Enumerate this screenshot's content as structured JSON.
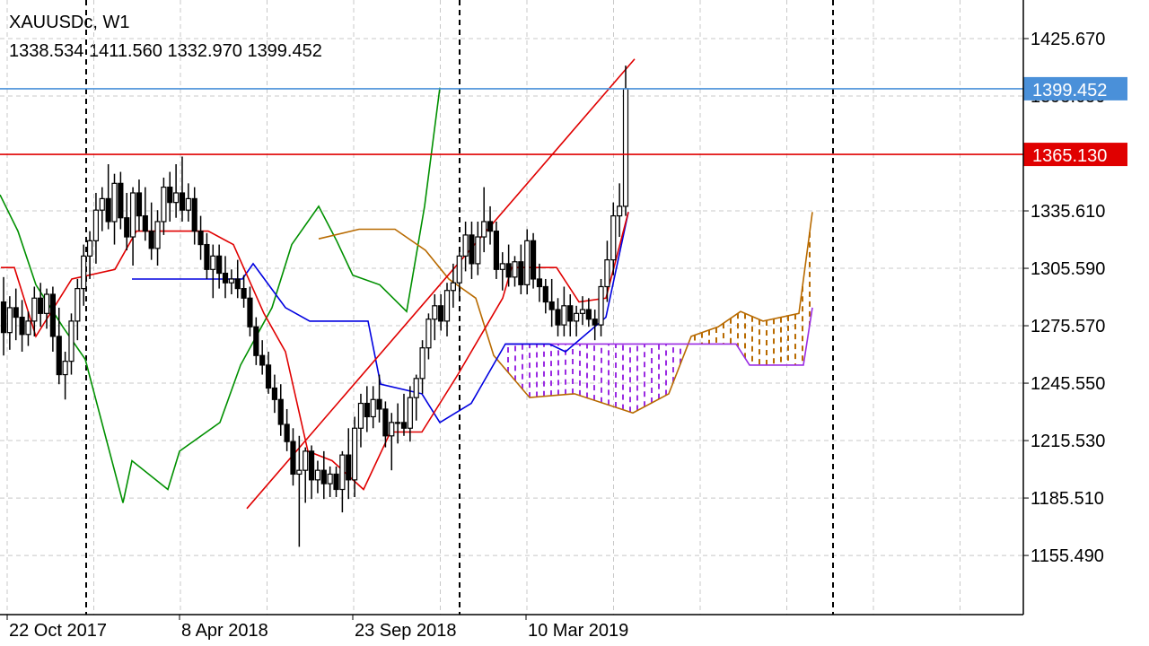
{
  "header": {
    "symbol": "XAUUSDc, W1",
    "ohlc": "1338.534 1411.560 1332.970 1399.452"
  },
  "colors": {
    "background": "#ffffff",
    "grid": "#c8c8c8",
    "candle": "#000000",
    "tenkan": "#e00000",
    "kijun": "#0000e0",
    "chikou": "#009000",
    "span_a": "#b86a00",
    "span_b": "#9a2be2",
    "current_price_line": "#4a90d9",
    "level_line": "#e00000",
    "trendline": "#e00000"
  },
  "chart_data": {
    "type": "candlestick",
    "title": "XAUUSDc, W1",
    "ylim": [
      1135,
      1447
    ],
    "y_ticks": [
      "1425.670",
      "1395.650",
      "1335.610",
      "1305.590",
      "1275.570",
      "1245.550",
      "1215.530",
      "1185.510",
      "1155.490"
    ],
    "x_ticks": [
      "22 Oct 2017",
      "8 Apr 2018",
      "23 Sep 2018",
      "10 Mar 2019"
    ],
    "grid": true,
    "price_labels": [
      {
        "value": "1399.452",
        "color": "#4a90d9"
      },
      {
        "value": "1365.130",
        "color": "#e00000"
      }
    ],
    "candles_ohlc": [
      [
        1288,
        1301,
        1260,
        1272
      ],
      [
        1272,
        1291,
        1263,
        1285
      ],
      [
        1285,
        1295,
        1268,
        1280
      ],
      [
        1280,
        1289,
        1262,
        1271
      ],
      [
        1271,
        1283,
        1265,
        1278
      ],
      [
        1278,
        1296,
        1270,
        1290
      ],
      [
        1290,
        1298,
        1275,
        1282
      ],
      [
        1282,
        1295,
        1274,
        1292
      ],
      [
        1292,
        1296,
        1262,
        1270
      ],
      [
        1270,
        1285,
        1245,
        1250
      ],
      [
        1250,
        1262,
        1237,
        1257
      ],
      [
        1257,
        1282,
        1250,
        1278
      ],
      [
        1278,
        1300,
        1268,
        1295
      ],
      [
        1295,
        1318,
        1286,
        1312
      ],
      [
        1312,
        1325,
        1300,
        1320
      ],
      [
        1320,
        1345,
        1308,
        1336
      ],
      [
        1336,
        1348,
        1325,
        1342
      ],
      [
        1342,
        1360,
        1326,
        1330
      ],
      [
        1330,
        1355,
        1318,
        1350
      ],
      [
        1350,
        1356,
        1326,
        1332
      ],
      [
        1332,
        1345,
        1315,
        1322
      ],
      [
        1322,
        1348,
        1307,
        1345
      ],
      [
        1345,
        1352,
        1325,
        1333
      ],
      [
        1333,
        1348,
        1320,
        1325
      ],
      [
        1325,
        1340,
        1310,
        1316
      ],
      [
        1316,
        1336,
        1307,
        1330
      ],
      [
        1330,
        1353,
        1323,
        1348
      ],
      [
        1348,
        1356,
        1330,
        1340
      ],
      [
        1340,
        1360,
        1332,
        1345
      ],
      [
        1345,
        1364,
        1330,
        1336
      ],
      [
        1336,
        1350,
        1330,
        1342
      ],
      [
        1342,
        1348,
        1318,
        1325
      ],
      [
        1325,
        1333,
        1310,
        1318
      ],
      [
        1318,
        1324,
        1300,
        1305
      ],
      [
        1305,
        1318,
        1290,
        1312
      ],
      [
        1312,
        1318,
        1295,
        1303
      ],
      [
        1303,
        1312,
        1290,
        1298
      ],
      [
        1298,
        1305,
        1292,
        1300
      ],
      [
        1300,
        1310,
        1290,
        1295
      ],
      [
        1295,
        1302,
        1285,
        1290
      ],
      [
        1290,
        1296,
        1270,
        1275
      ],
      [
        1275,
        1280,
        1255,
        1260
      ],
      [
        1260,
        1268,
        1250,
        1255
      ],
      [
        1255,
        1262,
        1240,
        1243
      ],
      [
        1243,
        1250,
        1230,
        1237
      ],
      [
        1237,
        1245,
        1218,
        1224
      ],
      [
        1224,
        1232,
        1210,
        1215
      ],
      [
        1215,
        1222,
        1192,
        1198
      ],
      [
        1198,
        1218,
        1160,
        1200
      ],
      [
        1200,
        1212,
        1183,
        1210
      ],
      [
        1210,
        1213,
        1185,
        1195
      ],
      [
        1195,
        1205,
        1188,
        1200
      ],
      [
        1200,
        1210,
        1185,
        1193
      ],
      [
        1193,
        1202,
        1186,
        1198
      ],
      [
        1198,
        1202,
        1186,
        1190
      ],
      [
        1190,
        1210,
        1178,
        1208
      ],
      [
        1208,
        1222,
        1185,
        1195
      ],
      [
        1195,
        1228,
        1186,
        1222
      ],
      [
        1222,
        1240,
        1212,
        1235
      ],
      [
        1235,
        1244,
        1220,
        1228
      ],
      [
        1228,
        1244,
        1222,
        1237
      ],
      [
        1237,
        1250,
        1225,
        1232
      ],
      [
        1232,
        1236,
        1212,
        1218
      ],
      [
        1218,
        1230,
        1200,
        1225
      ],
      [
        1225,
        1235,
        1214,
        1225
      ],
      [
        1225,
        1240,
        1218,
        1222
      ],
      [
        1222,
        1244,
        1215,
        1238
      ],
      [
        1238,
        1250,
        1226,
        1248
      ],
      [
        1248,
        1268,
        1240,
        1264
      ],
      [
        1264,
        1282,
        1258,
        1279
      ],
      [
        1279,
        1292,
        1268,
        1286
      ],
      [
        1286,
        1292,
        1273,
        1278
      ],
      [
        1278,
        1298,
        1270,
        1294
      ],
      [
        1294,
        1308,
        1285,
        1298
      ],
      [
        1298,
        1316,
        1290,
        1312
      ],
      [
        1312,
        1330,
        1304,
        1323
      ],
      [
        1323,
        1330,
        1300,
        1308
      ],
      [
        1308,
        1330,
        1302,
        1322
      ],
      [
        1322,
        1348,
        1314,
        1330
      ],
      [
        1330,
        1338,
        1318,
        1325
      ],
      [
        1325,
        1330,
        1300,
        1305
      ],
      [
        1305,
        1314,
        1294,
        1308
      ],
      [
        1308,
        1318,
        1296,
        1301
      ],
      [
        1301,
        1312,
        1296,
        1309
      ],
      [
        1309,
        1318,
        1292,
        1297
      ],
      [
        1297,
        1326,
        1292,
        1320
      ],
      [
        1320,
        1324,
        1295,
        1300
      ],
      [
        1300,
        1308,
        1288,
        1296
      ],
      [
        1296,
        1300,
        1282,
        1288
      ],
      [
        1288,
        1300,
        1275,
        1284
      ],
      [
        1284,
        1290,
        1270,
        1276
      ],
      [
        1276,
        1296,
        1270,
        1286
      ],
      [
        1286,
        1292,
        1270,
        1278
      ],
      [
        1278,
        1286,
        1270,
        1282
      ],
      [
        1282,
        1291,
        1276,
        1284
      ],
      [
        1284,
        1290,
        1275,
        1279
      ],
      [
        1279,
        1284,
        1268,
        1276
      ],
      [
        1276,
        1300,
        1270,
        1296
      ],
      [
        1296,
        1320,
        1288,
        1310
      ],
      [
        1310,
        1340,
        1302,
        1333
      ],
      [
        1333,
        1350,
        1322,
        1338
      ],
      [
        1338,
        1411.56,
        1332.97,
        1399.452
      ]
    ],
    "tenkan_points": [
      [
        1,
        1306
      ],
      [
        16,
        1306
      ],
      [
        40,
        1270
      ],
      [
        80,
        1300
      ],
      [
        128,
        1305
      ],
      [
        152,
        1325
      ],
      [
        232,
        1325
      ],
      [
        260,
        1318
      ],
      [
        294,
        1282
      ],
      [
        318,
        1262
      ],
      [
        343,
        1210
      ],
      [
        370,
        1205
      ],
      [
        405,
        1190
      ],
      [
        435,
        1220
      ],
      [
        470,
        1220
      ],
      [
        510,
        1250
      ],
      [
        560,
        1290
      ],
      [
        570,
        1306
      ],
      [
        620,
        1306
      ],
      [
        645,
        1288
      ],
      [
        675,
        1290
      ],
      [
        700,
        1335
      ]
    ],
    "kijun_points": [
      [
        147,
        1300
      ],
      [
        270,
        1300
      ],
      [
        282,
        1308
      ],
      [
        318,
        1285
      ],
      [
        345,
        1278
      ],
      [
        410,
        1278
      ],
      [
        424,
        1245
      ],
      [
        470,
        1240
      ],
      [
        490,
        1225
      ],
      [
        525,
        1235
      ],
      [
        563,
        1266
      ],
      [
        612,
        1266
      ],
      [
        630,
        1262
      ],
      [
        675,
        1280
      ],
      [
        700,
        1335
      ]
    ],
    "chikou_points": [
      [
        0,
        1344
      ],
      [
        20,
        1325
      ],
      [
        40,
        1297
      ],
      [
        70,
        1275
      ],
      [
        95,
        1258
      ],
      [
        137,
        1183
      ],
      [
        147,
        1205
      ],
      [
        187,
        1190
      ],
      [
        200,
        1210
      ],
      [
        245,
        1225
      ],
      [
        268,
        1255
      ],
      [
        303,
        1285
      ],
      [
        325,
        1318
      ],
      [
        355,
        1338
      ],
      [
        375,
        1320
      ],
      [
        393,
        1302
      ],
      [
        423,
        1297
      ],
      [
        453,
        1283
      ],
      [
        473,
        1338
      ],
      [
        490,
        1400
      ]
    ],
    "span_a_points": [
      [
        355,
        1321
      ],
      [
        400,
        1326
      ],
      [
        440,
        1326
      ],
      [
        474,
        1315
      ],
      [
        500,
        1300
      ],
      [
        530,
        1290
      ],
      [
        550,
        1260
      ],
      [
        590,
        1238
      ],
      [
        640,
        1240
      ],
      [
        705,
        1230
      ],
      [
        745,
        1240
      ],
      [
        770,
        1270
      ],
      [
        800,
        1275
      ],
      [
        825,
        1283
      ],
      [
        850,
        1278
      ],
      [
        890,
        1282
      ],
      [
        905,
        1335
      ]
    ],
    "span_b_points": [
      [
        563,
        1266
      ],
      [
        735,
        1266
      ],
      [
        820,
        1266
      ],
      [
        835,
        1255
      ],
      [
        895,
        1255
      ],
      [
        905,
        1285
      ]
    ],
    "current_price": 1399.452,
    "level_line": 1365.13,
    "trendline": [
      [
        275,
        1180
      ],
      [
        707,
        1415
      ]
    ],
    "vertical_markers": [
      "22 Oct 2017",
      "23 Sep 2018"
    ]
  }
}
